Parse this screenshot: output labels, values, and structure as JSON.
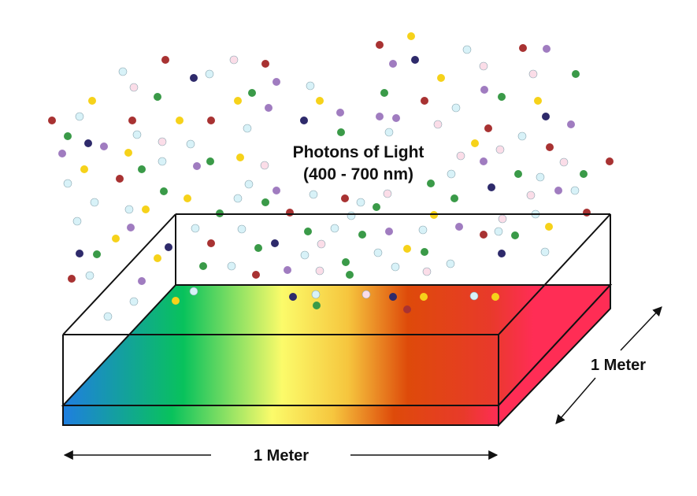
{
  "title": {
    "line1": "Photons of Light",
    "line2": "(400 - 700 nm)"
  },
  "labels": {
    "width": "1 Meter",
    "depth": "1 Meter"
  },
  "colors": {
    "photon_red": "#a83232",
    "photon_yellow": "#f6d21a",
    "photon_green": "#3a9a48",
    "photon_purple": "#a07cc0",
    "photon_navy": "#2e2a6b",
    "photon_lightblue": "#d8f2f8",
    "photon_pink": "#fbdde8",
    "spectrum": [
      "#1f7ee0",
      "#08c25c",
      "#fbfb6a",
      "#f6c63e",
      "#de4a0a",
      "#ff2d55"
    ],
    "outline": "#111111"
  }
}
